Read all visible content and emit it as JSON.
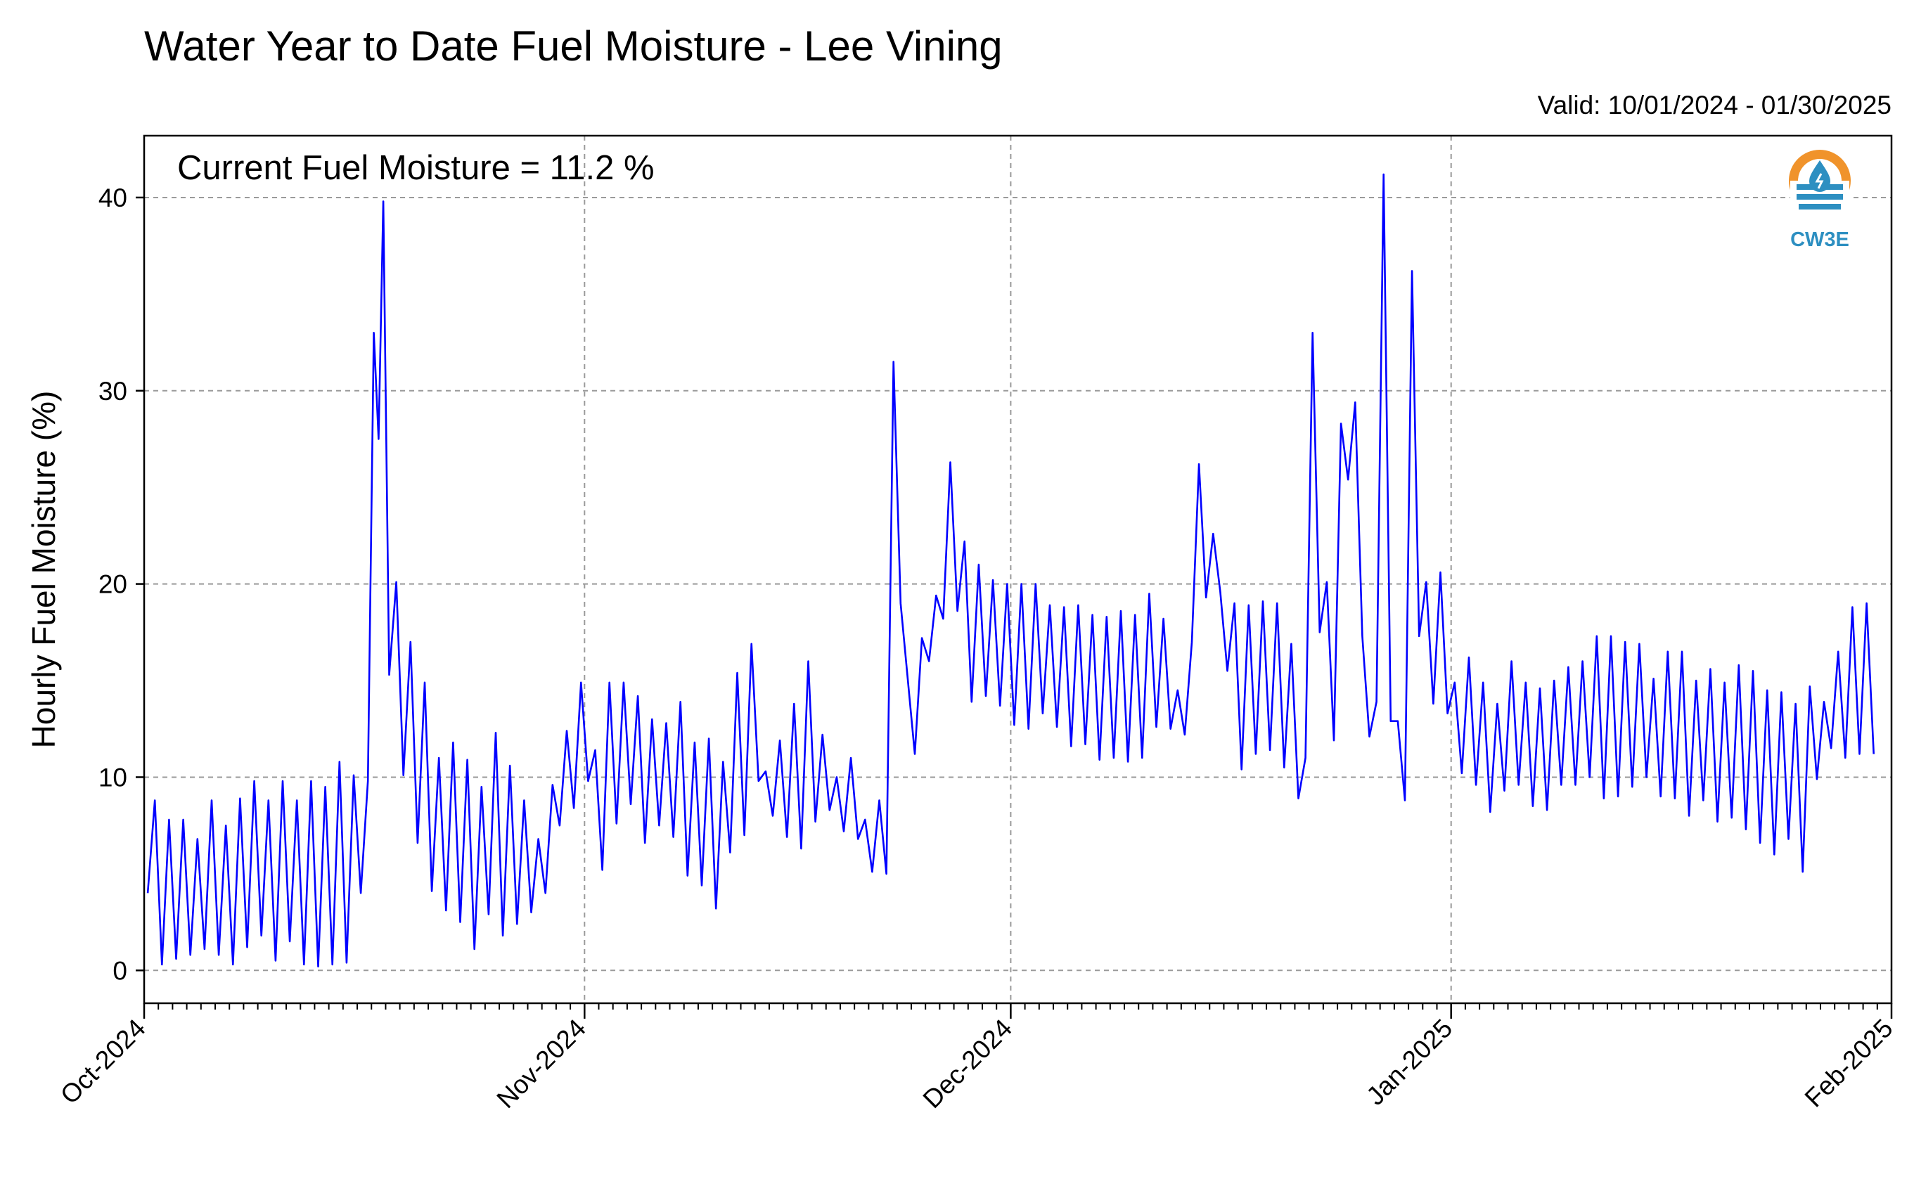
{
  "title": "Water Year to Date Fuel Moisture - Lee Vining",
  "valid_text": "Valid: 10/01/2024 - 01/30/2025",
  "annotation": "Current Fuel Moisture = 11.2 %",
  "logo": {
    "text": "CW3E",
    "icon": "water-drop-sun-icon",
    "ring_color": "#f0932b",
    "wave_color": "#2d8fc1"
  },
  "colors": {
    "line": "#0000ff",
    "grid": "#9a9a9a",
    "axis": "#000000"
  },
  "chart_data": {
    "type": "line",
    "title": "Water Year to Date Fuel Moisture - Lee Vining",
    "ylabel": "Hourly Fuel Moisture (%)",
    "xlabel": "",
    "xlim": [
      "2024-10-01",
      "2025-02-01"
    ],
    "ylim": [
      -1.7,
      43.2
    ],
    "yticks": [
      0,
      10,
      20,
      30,
      40
    ],
    "xticks": [
      {
        "date": "2024-10-01",
        "label": "Oct-2024"
      },
      {
        "date": "2024-11-01",
        "label": "Nov-2024"
      },
      {
        "date": "2024-12-01",
        "label": "Dec-2024"
      },
      {
        "date": "2025-01-01",
        "label": "Jan-2025"
      },
      {
        "date": "2025-02-01",
        "label": "Feb-2025"
      }
    ],
    "grid": true,
    "series": [
      {
        "x": [
          "2024-10-01",
          "2024-10-01",
          "2024-10-02",
          "2024-10-02",
          "2024-10-03",
          "2024-10-03",
          "2024-10-04",
          "2024-10-04",
          "2024-10-05",
          "2024-10-05",
          "2024-10-06",
          "2024-10-06",
          "2024-10-07",
          "2024-10-07",
          "2024-10-08",
          "2024-10-08",
          "2024-10-09",
          "2024-10-09",
          "2024-10-10",
          "2024-10-10",
          "2024-10-11",
          "2024-10-11",
          "2024-10-12",
          "2024-10-12",
          "2024-10-13",
          "2024-10-13",
          "2024-10-14",
          "2024-10-14",
          "2024-10-15",
          "2024-10-15",
          "2024-10-16",
          "2024-10-16",
          "2024-10-17",
          "2024-10-17",
          "2024-10-17",
          "2024-10-18",
          "2024-10-18",
          "2024-10-19",
          "2024-10-19",
          "2024-10-20",
          "2024-10-20",
          "2024-10-21",
          "2024-10-21",
          "2024-10-22",
          "2024-10-22",
          "2024-10-23",
          "2024-10-23",
          "2024-10-24",
          "2024-10-24",
          "2024-10-25",
          "2024-10-25",
          "2024-10-26",
          "2024-10-26",
          "2024-10-27",
          "2024-10-27",
          "2024-10-28",
          "2024-10-28",
          "2024-10-29",
          "2024-10-29",
          "2024-10-30",
          "2024-10-30",
          "2024-10-31",
          "2024-10-31",
          "2024-11-01",
          "2024-11-01",
          "2024-11-02",
          "2024-11-02",
          "2024-11-03",
          "2024-11-03",
          "2024-11-04",
          "2024-11-04",
          "2024-11-05",
          "2024-11-05",
          "2024-11-06",
          "2024-11-06",
          "2024-11-07",
          "2024-11-07",
          "2024-11-08",
          "2024-11-08",
          "2024-11-09",
          "2024-11-09",
          "2024-11-10",
          "2024-11-10",
          "2024-11-11",
          "2024-11-11",
          "2024-11-12",
          "2024-11-12",
          "2024-11-13",
          "2024-11-13",
          "2024-11-14",
          "2024-11-14",
          "2024-11-15",
          "2024-11-15",
          "2024-11-16",
          "2024-11-16",
          "2024-11-17",
          "2024-11-17",
          "2024-11-18",
          "2024-11-18",
          "2024-11-19",
          "2024-11-19",
          "2024-11-20",
          "2024-11-20",
          "2024-11-21",
          "2024-11-21",
          "2024-11-22",
          "2024-11-22",
          "2024-11-23",
          "2024-11-23",
          "2024-11-24",
          "2024-11-24",
          "2024-11-25",
          "2024-11-25",
          "2024-11-26",
          "2024-11-26",
          "2024-11-27",
          "2024-11-27",
          "2024-11-28",
          "2024-11-28",
          "2024-11-29",
          "2024-11-29",
          "2024-11-30",
          "2024-11-30",
          "2024-12-01",
          "2024-12-01",
          "2024-12-02",
          "2024-12-02",
          "2024-12-03",
          "2024-12-03",
          "2024-12-04",
          "2024-12-04",
          "2024-12-05",
          "2024-12-05",
          "2024-12-06",
          "2024-12-06",
          "2024-12-07",
          "2024-12-07",
          "2024-12-08",
          "2024-12-08",
          "2024-12-09",
          "2024-12-09",
          "2024-12-10",
          "2024-12-10",
          "2024-12-11",
          "2024-12-11",
          "2024-12-12",
          "2024-12-12",
          "2024-12-13",
          "2024-12-13",
          "2024-12-14",
          "2024-12-14",
          "2024-12-15",
          "2024-12-15",
          "2024-12-16",
          "2024-12-16",
          "2024-12-17",
          "2024-12-17",
          "2024-12-18",
          "2024-12-18",
          "2024-12-19",
          "2024-12-19",
          "2024-12-20",
          "2024-12-20",
          "2024-12-21",
          "2024-12-21",
          "2024-12-22",
          "2024-12-22",
          "2024-12-23",
          "2024-12-23",
          "2024-12-24",
          "2024-12-24",
          "2024-12-25",
          "2024-12-25",
          "2024-12-26",
          "2024-12-26",
          "2024-12-27",
          "2024-12-27",
          "2024-12-28",
          "2024-12-28",
          "2024-12-29",
          "2024-12-29",
          "2024-12-30",
          "2024-12-30",
          "2024-12-31",
          "2024-12-31",
          "2025-01-01",
          "2025-01-01",
          "2025-01-02",
          "2025-01-02",
          "2025-01-03",
          "2025-01-03",
          "2025-01-04",
          "2025-01-04",
          "2025-01-05",
          "2025-01-05",
          "2025-01-06",
          "2025-01-06",
          "2025-01-07",
          "2025-01-07",
          "2025-01-08",
          "2025-01-08",
          "2025-01-09",
          "2025-01-09",
          "2025-01-10",
          "2025-01-10",
          "2025-01-11",
          "2025-01-11",
          "2025-01-12",
          "2025-01-12",
          "2025-01-13",
          "2025-01-13",
          "2025-01-14",
          "2025-01-14",
          "2025-01-15",
          "2025-01-15",
          "2025-01-16",
          "2025-01-16",
          "2025-01-17",
          "2025-01-17",
          "2025-01-18",
          "2025-01-18",
          "2025-01-19",
          "2025-01-19",
          "2025-01-20",
          "2025-01-20",
          "2025-01-21",
          "2025-01-21",
          "2025-01-22",
          "2025-01-22",
          "2025-01-23",
          "2025-01-23",
          "2025-01-24",
          "2025-01-24",
          "2025-01-25",
          "2025-01-25",
          "2025-01-26",
          "2025-01-26",
          "2025-01-27",
          "2025-01-27",
          "2025-01-28",
          "2025-01-28",
          "2025-01-29",
          "2025-01-29",
          "2025-01-30",
          "2025-01-30"
        ],
        "y": [
          4.0,
          8.8,
          0.3,
          7.8,
          0.6,
          7.8,
          0.8,
          6.8,
          1.1,
          8.8,
          0.8,
          7.5,
          0.3,
          8.9,
          1.2,
          9.8,
          1.8,
          8.8,
          0.5,
          9.8,
          1.5,
          8.8,
          0.3,
          9.8,
          0.2,
          9.5,
          0.3,
          10.8,
          0.4,
          10.1,
          4.0,
          9.8,
          33.0,
          27.5,
          39.8,
          15.3,
          20.1,
          10.1,
          17.0,
          6.6,
          14.9,
          4.1,
          11.0,
          3.1,
          11.8,
          2.5,
          10.9,
          1.1,
          9.5,
          2.9,
          12.3,
          1.8,
          10.6,
          2.4,
          8.8,
          3.0,
          6.8,
          4.0,
          9.6,
          7.5,
          12.4,
          8.4,
          14.9,
          9.8,
          11.4,
          5.2,
          14.9,
          7.6,
          14.9,
          8.6,
          14.2,
          6.6,
          13.0,
          7.5,
          12.8,
          6.9,
          13.9,
          4.9,
          11.8,
          4.4,
          12.0,
          3.2,
          10.8,
          6.1,
          15.4,
          7.0,
          16.9,
          9.8,
          10.3,
          8.0,
          11.9,
          6.9,
          13.8,
          6.3,
          16.0,
          7.7,
          12.2,
          8.3,
          10.0,
          7.2,
          11.0,
          6.8,
          7.8,
          5.1,
          8.8,
          5.0,
          31.5,
          19.0,
          15.1,
          11.2,
          17.2,
          16.0,
          19.4,
          18.2,
          26.3,
          18.6,
          22.2,
          13.9,
          21.0,
          14.2,
          20.2,
          13.7,
          20.0,
          12.7,
          20.0,
          12.5,
          20.0,
          13.3,
          18.9,
          12.6,
          18.8,
          11.6,
          18.9,
          11.7,
          18.4,
          10.9,
          18.3,
          11.0,
          18.6,
          10.8,
          18.4,
          11.0,
          19.5,
          12.6,
          18.2,
          12.5,
          14.5,
          12.2,
          17.0,
          26.2,
          19.3,
          22.6,
          19.6,
          15.5,
          19.0,
          10.4,
          18.9,
          11.2,
          19.1,
          11.4,
          19.0,
          10.5,
          16.9,
          8.9,
          11.0,
          33.0,
          17.5,
          20.1,
          11.9,
          28.3,
          25.4,
          29.4,
          17.3,
          12.1,
          13.9,
          41.2,
          12.9,
          12.9,
          8.8,
          36.2,
          17.3,
          20.1,
          13.8,
          20.6,
          13.3,
          14.9,
          10.2,
          16.2,
          9.6,
          14.9,
          8.2,
          13.8,
          9.3,
          16.0,
          9.6,
          14.9,
          8.5,
          14.6,
          8.3,
          15.0,
          9.6,
          15.7,
          9.6,
          16.0,
          10.0,
          17.3,
          8.9,
          17.3,
          9.0,
          17.0,
          9.5,
          16.9,
          10.0,
          15.1,
          9.0,
          16.5,
          8.9,
          16.5,
          8.0,
          15.0,
          8.8,
          15.6,
          7.7,
          14.9,
          7.9,
          15.8,
          7.3,
          15.5,
          6.6,
          14.5,
          6.0,
          14.4,
          6.8,
          13.8,
          5.1,
          14.7,
          9.9,
          13.9,
          11.5,
          16.5,
          11.0,
          18.8,
          11.2,
          19.0,
          11.2
        ]
      }
    ]
  }
}
